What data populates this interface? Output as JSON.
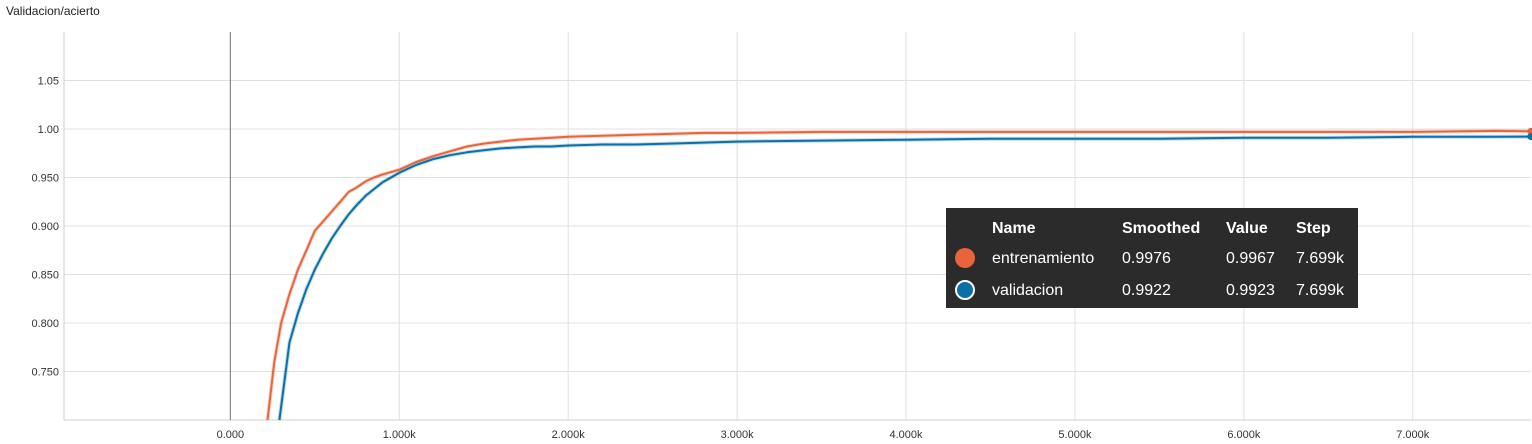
{
  "chart_data": {
    "type": "line",
    "title": "Validacion/acierto",
    "x_tick_labels": [
      "0.000",
      "1.000k",
      "2.000k",
      "3.000k",
      "4.000k",
      "5.000k",
      "6.000k",
      "7.000k"
    ],
    "y_tick_labels": [
      "1.05",
      "1.00",
      "0.950",
      "0.900",
      "0.850",
      "0.800",
      "0.750"
    ],
    "xlim": [
      -985,
      7700
    ],
    "ylim": [
      0.7,
      1.1
    ],
    "grid": true,
    "vertical_axis_at_x": 0,
    "series": [
      {
        "name": "entrenamiento",
        "color": "#e8643c",
        "x": [
          220,
          260,
          300,
          350,
          400,
          450,
          500,
          550,
          600,
          650,
          700,
          750,
          800,
          850,
          900,
          1000,
          1100,
          1200,
          1300,
          1400,
          1500,
          1600,
          1700,
          1800,
          1900,
          2000,
          2200,
          2400,
          2600,
          2800,
          3000,
          3500,
          4000,
          4500,
          5000,
          5500,
          6000,
          6500,
          7000,
          7500,
          7699
        ],
        "y": [
          0.7,
          0.76,
          0.8,
          0.83,
          0.855,
          0.875,
          0.895,
          0.905,
          0.915,
          0.925,
          0.935,
          0.94,
          0.946,
          0.95,
          0.953,
          0.958,
          0.966,
          0.972,
          0.977,
          0.982,
          0.985,
          0.987,
          0.989,
          0.99,
          0.991,
          0.992,
          0.993,
          0.994,
          0.995,
          0.996,
          0.996,
          0.997,
          0.997,
          0.997,
          0.997,
          0.997,
          0.997,
          0.997,
          0.997,
          0.998,
          0.9976
        ]
      },
      {
        "name": "validacion",
        "color": "#0b6fa8",
        "x": [
          290,
          350,
          400,
          450,
          500,
          550,
          600,
          650,
          700,
          750,
          800,
          900,
          1000,
          1100,
          1200,
          1300,
          1400,
          1500,
          1600,
          1700,
          1800,
          1900,
          2000,
          2200,
          2400,
          2600,
          2800,
          3000,
          3500,
          4000,
          4500,
          5000,
          5500,
          6000,
          6500,
          7000,
          7500,
          7699
        ],
        "y": [
          0.7,
          0.78,
          0.81,
          0.835,
          0.855,
          0.872,
          0.887,
          0.9,
          0.912,
          0.922,
          0.931,
          0.945,
          0.955,
          0.963,
          0.969,
          0.973,
          0.976,
          0.978,
          0.98,
          0.981,
          0.982,
          0.982,
          0.983,
          0.984,
          0.984,
          0.985,
          0.986,
          0.987,
          0.988,
          0.989,
          0.99,
          0.99,
          0.99,
          0.991,
          0.991,
          0.992,
          0.992,
          0.9922
        ]
      }
    ]
  },
  "legend": {
    "headers": [
      "Name",
      "Smoothed",
      "Value",
      "Step"
    ],
    "rows": [
      {
        "name": "entrenamiento",
        "smoothed": "0.9976",
        "value": "0.9967",
        "step": "7.699k",
        "color": "#e8643c"
      },
      {
        "name": "validacion",
        "smoothed": "0.9922",
        "value": "0.9923",
        "step": "7.699k",
        "color": "#0b6fa8"
      }
    ]
  }
}
